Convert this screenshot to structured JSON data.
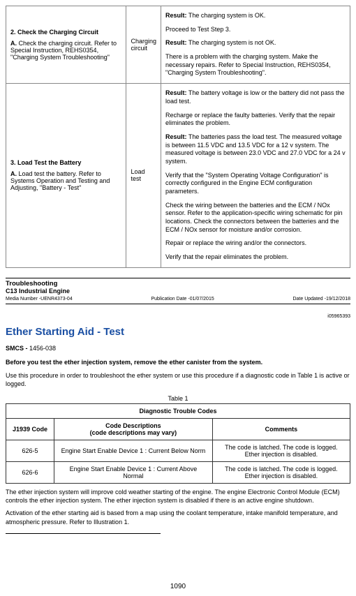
{
  "upperTable": {
    "rows": [
      {
        "stepTitle": "2. Check the Charging Circuit",
        "stepBody": "A. Check the charging circuit. Refer to Special Instruction, REHS0354, \"Charging System Troubleshooting\"",
        "middle": "Charging circuit",
        "results": [
          {
            "b": "Result:",
            "t": " The charging system is OK."
          },
          {
            "b": "",
            "t": "Proceed to Test Step 3."
          },
          {
            "b": "Result:",
            "t": " The charging system is not OK."
          },
          {
            "b": "",
            "t": "There is a problem with the charging system. Make the necessary repairs. Refer to Special Instruction, REHS0354, \"Charging System Troubleshooting\"."
          }
        ]
      },
      {
        "stepTitle": "3. Load Test the Battery",
        "stepBody": "A. Load test the battery. Refer to Systems Operation and Testing and Adjusting, \"Battery - Test\"",
        "middle": "Load test",
        "results": [
          {
            "b": "Result:",
            "t": " The battery voltage is low or the battery did not pass the load test."
          },
          {
            "b": "",
            "t": "Recharge or replace the faulty batteries. Verify that the repair eliminates the problem."
          },
          {
            "b": "Result:",
            "t": " The batteries pass the load test. The measured voltage is between 11.5 VDC and 13.5 VDC for a 12 v system. The measured voltage is between 23.0 VDC and 27.0 VDC for a 24 v system."
          },
          {
            "b": "",
            "t": "Verify that the \"System Operating Voltage Configuration\" is correctly configured in the Engine ECM configuration parameters."
          },
          {
            "b": "",
            "t": "Check the wiring between the batteries and the ECM / NOx sensor. Refer to the application-specific wiring schematic for pin locations. Check the connectors between the batteries and the ECM / NOx sensor for moisture and/or corrosion."
          },
          {
            "b": "",
            "t": "Repair or replace the wiring and/or the connectors."
          },
          {
            "b": "",
            "t": "Verify that the repair eliminates the problem."
          }
        ]
      }
    ]
  },
  "tsHeader": {
    "title": "Troubleshooting",
    "sub": "C13 Industrial Engine",
    "mediaNum": "Media Number -UENR4373-04",
    "pubDate": "Publication Date -01/07/2015",
    "dateUpd": "Date Updated -19/12/2018"
  },
  "rightId": "i05965393",
  "section": {
    "title": "Ether Starting Aid - Test",
    "smcsLabel": "SMCS - ",
    "smcsVal": "1456-038",
    "lead": "Before you test the ether injection system, remove the ether canister from the system.",
    "intro": "Use this procedure in order to troubleshoot the ether system or use this procedure if a diagnostic code in Table 1 is active or logged."
  },
  "codesTable": {
    "caption": "Table 1",
    "headTitle": "Diagnostic Trouble Codes",
    "cols": [
      "J1939 Code",
      "Code Descriptions\n(code descriptions may vary)",
      "Comments"
    ],
    "rows": [
      [
        "626-5",
        "Engine Start Enable Device 1 : Current Below Norm",
        "The code is latched. The code is logged. Ether injection is disabled."
      ],
      [
        "626-6",
        "Engine Start Enable Device 1 : Current Above Normal",
        "The code is latched. The code is logged. Ether injection is disabled."
      ]
    ]
  },
  "bodyParas": [
    "The ether injection system will improve cold weather starting of the engine. The engine Electronic Control Module (ECM) controls the ether injection system. The ether injection system is disabled if there is an active engine shutdown.",
    "Activation of the ether starting aid is based from a map using the coolant temperature, intake manifold temperature, and atmospheric pressure. Refer to Illustration 1."
  ],
  "pageNum": "1090"
}
